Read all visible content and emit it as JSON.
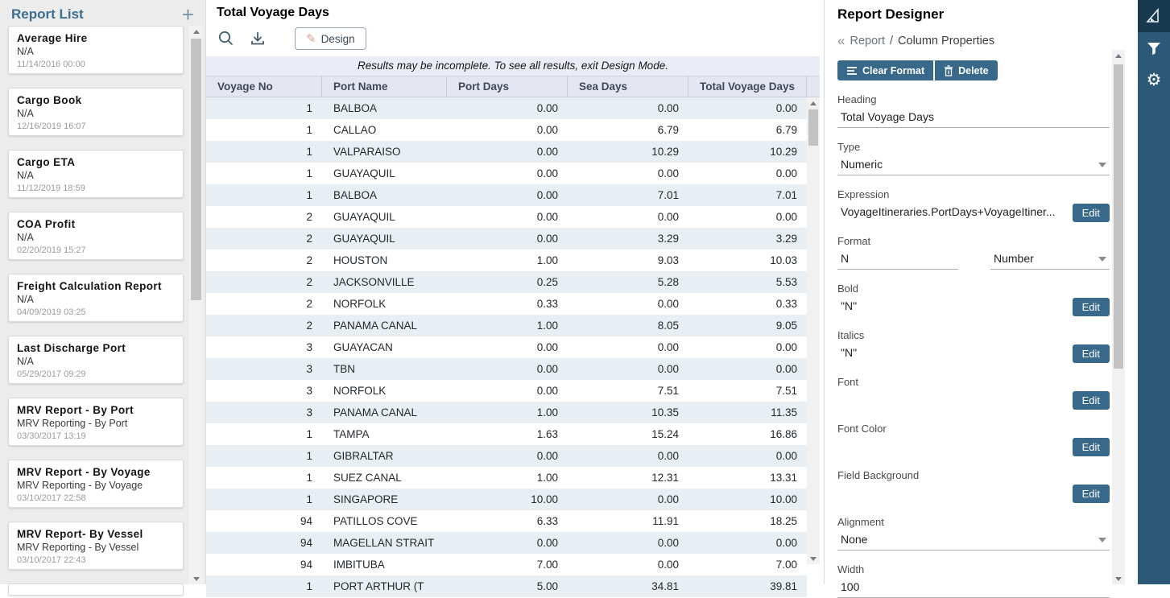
{
  "sidebar": {
    "title": "Report List",
    "reports": [
      {
        "title": "Average Hire",
        "subtitle": "N/A",
        "timestamp": "11/14/2016 00:00"
      },
      {
        "title": "Cargo Book",
        "subtitle": "N/A",
        "timestamp": "12/16/2019 16:07"
      },
      {
        "title": "Cargo ETA",
        "subtitle": "N/A",
        "timestamp": "11/12/2019 18:59"
      },
      {
        "title": "COA Profit",
        "subtitle": "N/A",
        "timestamp": "02/20/2019 15:27"
      },
      {
        "title": "Freight Calculation Report",
        "subtitle": "N/A",
        "timestamp": "04/09/2019 03:25"
      },
      {
        "title": "Last Discharge Port",
        "subtitle": "N/A",
        "timestamp": "05/29/2017 09:29"
      },
      {
        "title": "MRV Report - By Port",
        "subtitle": "MRV Reporting - By Port",
        "timestamp": "03/30/2017 13:19"
      },
      {
        "title": "MRV Report - By Voyage",
        "subtitle": "MRV Reporting - By Voyage",
        "timestamp": "03/10/2017 22:58"
      },
      {
        "title": "MRV Report- By Vessel",
        "subtitle": "MRV Reporting - By Vessel",
        "timestamp": "03/10/2017 22:43"
      }
    ]
  },
  "main": {
    "title": "Total Voyage Days",
    "design_button": "Design",
    "banner": "Results may be incomplete. To see all results, exit Design Mode.",
    "table": {
      "columns": [
        "Voyage No",
        "Port Name",
        "Port Days",
        "Sea Days",
        "Total Voyage Days"
      ],
      "rows": [
        [
          "1",
          "BALBOA",
          "0.00",
          "0.00",
          "0.00"
        ],
        [
          "1",
          "CALLAO",
          "0.00",
          "6.79",
          "6.79"
        ],
        [
          "1",
          "VALPARAISO",
          "0.00",
          "10.29",
          "10.29"
        ],
        [
          "1",
          "GUAYAQUIL",
          "0.00",
          "0.00",
          "0.00"
        ],
        [
          "1",
          "BALBOA",
          "0.00",
          "7.01",
          "7.01"
        ],
        [
          "2",
          "GUAYAQUIL",
          "0.00",
          "0.00",
          "0.00"
        ],
        [
          "2",
          "GUAYAQUIL",
          "0.00",
          "3.29",
          "3.29"
        ],
        [
          "2",
          "HOUSTON",
          "1.00",
          "9.03",
          "10.03"
        ],
        [
          "2",
          "JACKSONVILLE",
          "0.25",
          "5.28",
          "5.53"
        ],
        [
          "2",
          "NORFOLK",
          "0.33",
          "0.00",
          "0.33"
        ],
        [
          "2",
          "PANAMA CANAL",
          "1.00",
          "8.05",
          "9.05"
        ],
        [
          "3",
          "GUAYACAN",
          "0.00",
          "0.00",
          "0.00"
        ],
        [
          "3",
          "TBN",
          "0.00",
          "0.00",
          "0.00"
        ],
        [
          "3",
          "NORFOLK",
          "0.00",
          "7.51",
          "7.51"
        ],
        [
          "3",
          "PANAMA CANAL",
          "1.00",
          "10.35",
          "11.35"
        ],
        [
          "1",
          "TAMPA",
          "1.63",
          "15.24",
          "16.86"
        ],
        [
          "1",
          "GIBRALTAR",
          "0.00",
          "0.00",
          "0.00"
        ],
        [
          "1",
          "SUEZ CANAL",
          "1.00",
          "12.31",
          "13.31"
        ],
        [
          "1",
          "SINGAPORE",
          "10.00",
          "0.00",
          "10.00"
        ],
        [
          "94",
          "PATILLOS COVE",
          "6.33",
          "11.91",
          "18.25"
        ],
        [
          "94",
          "MAGELLAN STRAIT",
          "0.00",
          "0.00",
          "0.00"
        ],
        [
          "94",
          "IMBITUBA",
          "7.00",
          "0.00",
          "7.00"
        ],
        [
          "1",
          "PORT ARTHUR (T",
          "5.00",
          "34.81",
          "39.81"
        ]
      ]
    }
  },
  "designer": {
    "title": "Report Designer",
    "breadcrumb": {
      "back_icon": "chevrons-left",
      "link": "Report",
      "separator": "/",
      "current": "Column Properties"
    },
    "actions": {
      "clear_format": "Clear Format",
      "delete": "Delete"
    },
    "edit_label": "Edit",
    "fields": {
      "heading": {
        "label": "Heading",
        "value": "Total Voyage Days"
      },
      "type": {
        "label": "Type",
        "value": "Numeric"
      },
      "expression": {
        "label": "Expression",
        "value": "VoyageItineraries.PortDays+VoyageItiner..."
      },
      "format": {
        "label": "Format",
        "value": "N",
        "format_type": "Number"
      },
      "bold": {
        "label": "Bold",
        "value": "\"N\""
      },
      "italics": {
        "label": "Italics",
        "value": "\"N\""
      },
      "font": {
        "label": "Font",
        "value": ""
      },
      "font_color": {
        "label": "Font Color",
        "value": ""
      },
      "field_background": {
        "label": "Field Background",
        "value": ""
      },
      "alignment": {
        "label": "Alignment",
        "value": "None"
      },
      "width": {
        "label": "Width",
        "value": "100"
      }
    }
  },
  "toolbar": {
    "icons": [
      "pointer-tool",
      "filter",
      "settings"
    ]
  },
  "colors": {
    "accent_steel_blue": "#38688a",
    "sidebar_title_blue": "#3d6d90",
    "toolbar_bg": "#2c5a76",
    "toolbar_active_bg": "#19394f",
    "table_header_bg": "#e4e7f1",
    "banner_bg": "#ebedf6",
    "row_alt_bg": "#e9eef3",
    "pencil_icon": "#dd9d96"
  }
}
